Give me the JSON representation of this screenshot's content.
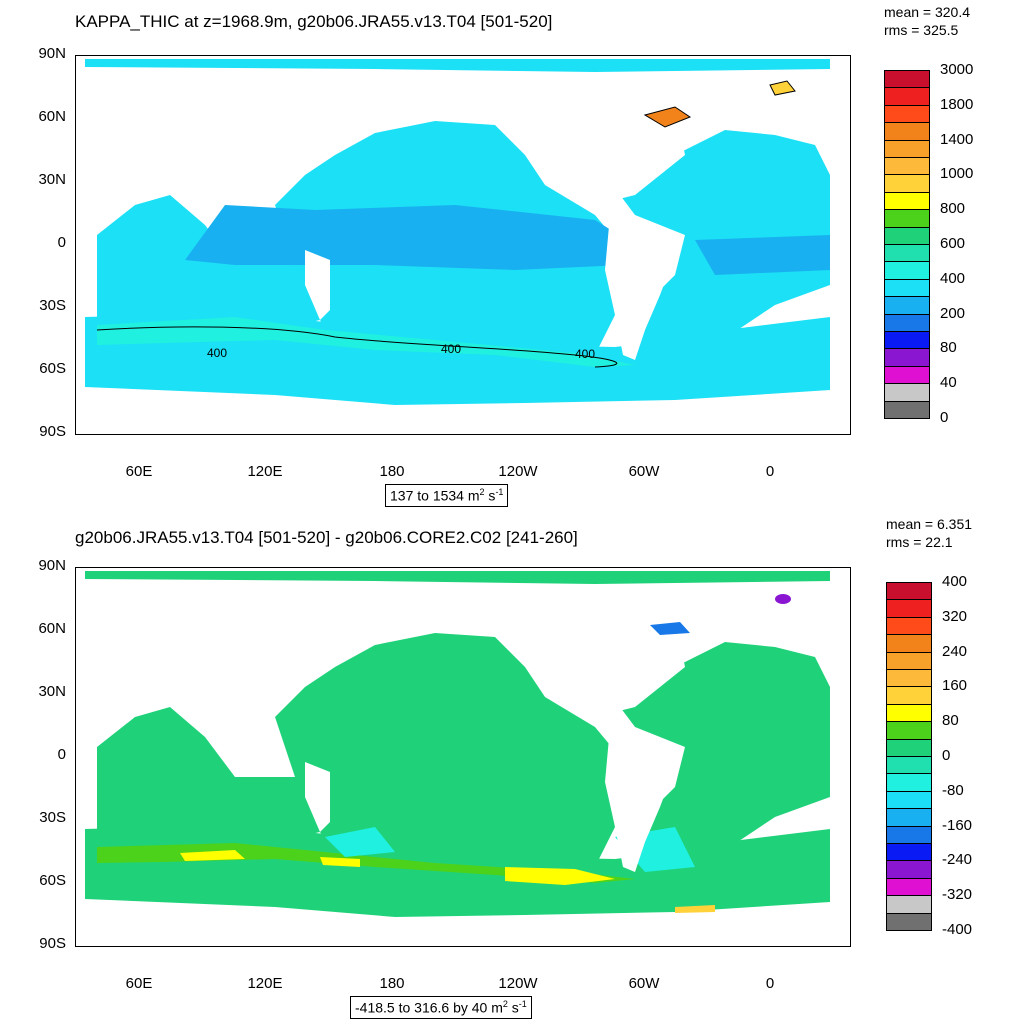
{
  "panels": [
    {
      "title": "KAPPA_THIC at z=1968.9m, g20b06.JRA55.v13.T04 [501-520]",
      "mean": "mean = 320.4",
      "rms": "rms = 325.5",
      "range": "137 to 1534",
      "units_main": "m",
      "units_exp1": "2",
      "units_mid": " s",
      "units_exp2": "-1",
      "contour_label": "400",
      "colorbar": {
        "labels": [
          "3000",
          "1800",
          "1400",
          "1000",
          "800",
          "600",
          "400",
          "200",
          "80",
          "40",
          "0"
        ],
        "colors": [
          "#c8102e",
          "#ee2020",
          "#ff4b1a",
          "#f2821a",
          "#f7a02a",
          "#fdb93a",
          "#ffd23a",
          "#ffff00",
          "#4cd21a",
          "#1fd27a",
          "#20e0b0",
          "#20f0e0",
          "#1ce0f5",
          "#18b0f0",
          "#1878e8",
          "#0a1af5",
          "#8a16d2",
          "#e010d2",
          "#c8c8c8",
          "#707070"
        ]
      }
    },
    {
      "title": "g20b06.JRA55.v13.T04 [501-520] - g20b06.CORE2.C02 [241-260]",
      "mean": "mean = 6.351",
      "rms": "rms = 22.1",
      "range": "-418.5 to 316.6 by 40",
      "units_main": "m",
      "units_exp1": "2",
      "units_mid": " s",
      "units_exp2": "-1",
      "colorbar": {
        "labels": [
          "400",
          "320",
          "240",
          "160",
          "80",
          "0",
          "-80",
          "-160",
          "-240",
          "-320",
          "-400"
        ],
        "colors": [
          "#c8102e",
          "#ee2020",
          "#ff4b1a",
          "#f2821a",
          "#f7a02a",
          "#fdb93a",
          "#ffd23a",
          "#ffff00",
          "#4cd21a",
          "#1fd27a",
          "#20e0b0",
          "#20f0e0",
          "#1ce0f5",
          "#18b0f0",
          "#1878e8",
          "#0a1af5",
          "#8a16d2",
          "#e010d2",
          "#c8c8c8",
          "#707070"
        ]
      }
    }
  ],
  "axes": {
    "lat_labels": [
      "90N",
      "60N",
      "30N",
      "0",
      "30S",
      "60S",
      "90S"
    ],
    "lon_labels": [
      "60E",
      "120E",
      "180",
      "120W",
      "60W",
      "0"
    ]
  },
  "colors": {
    "ocean_top": "#1ce0f5",
    "ocean_top_band": "#18b0f0",
    "ocean_top_south": "#20f0e0",
    "ocean_bottom": "#1fd27a",
    "ocean_bottom_band": "#4cd21a",
    "ocean_bottom_hi": "#ffff00",
    "land": "#ffffff"
  }
}
